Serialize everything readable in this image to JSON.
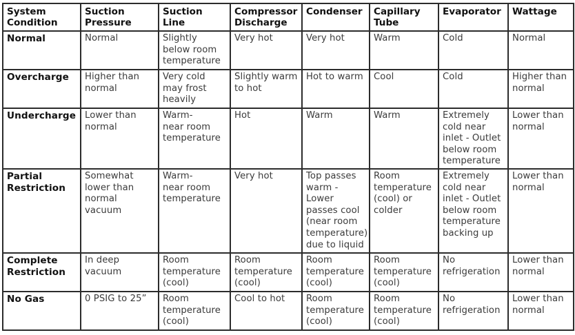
{
  "table": {
    "headers": [
      "System\nCondition",
      "Suction\nPressure",
      "Suction\nLine",
      "Compressor\nDischarge",
      "Condenser",
      "Capillary\nTube",
      "Evaporator",
      "Wattage"
    ],
    "rows": [
      {
        "condition": "Normal",
        "cells": [
          "Normal",
          "Slightly\nbelow room\ntemperature",
          "Very hot",
          "Very hot",
          "Warm",
          "Cold",
          "Normal"
        ]
      },
      {
        "condition": "Overcharge",
        "cells": [
          "Higher than\nnormal",
          "Very cold\nmay frost\nheavily",
          "Slightly warm\nto hot",
          "Hot to warm",
          "Cool",
          "Cold",
          "Higher than\nnormal"
        ]
      },
      {
        "condition": "Undercharge",
        "cells": [
          "Lower than\nnormal",
          "Warm-\nnear room\ntemperature",
          "Hot",
          "Warm",
          "Warm",
          "Extremely\ncold near\ninlet - Outlet\nbelow room\ntemperature",
          "Lower than\nnormal"
        ]
      },
      {
        "condition": "Partial\nRestriction",
        "cells": [
          "Somewhat\nlower than\nnormal vacuum",
          "Warm-\nnear room\ntemperature",
          "Very hot",
          "Top passes\nwarm -\nLower\npasses cool\n(near room\ntemperature)\ndue to liquid",
          "Room\ntemperature\n(cool) or\ncolder",
          "Extremely\ncold near\ninlet - Outlet\nbelow room\ntemperature\nbacking up",
          "Lower than\nnormal"
        ]
      },
      {
        "condition": "Complete\nRestriction",
        "cells": [
          "In deep\nvacuum",
          "Room\ntemperature\n(cool)",
          "Room\ntemperature\n(cool)",
          "Room\ntemperature\n(cool)",
          "Room\ntemperature\n(cool)",
          "No\nrefrigeration",
          "Lower than\nnormal"
        ]
      },
      {
        "condition": "No Gas",
        "cells": [
          "0 PSIG to 25”",
          "Room\ntemperature\n(cool)",
          "Cool to hot",
          "Room\ntemperature\n(cool)",
          "Room\ntemperature\n(cool)",
          "No\nrefrigeration",
          "Lower than\nnormal"
        ]
      }
    ]
  }
}
